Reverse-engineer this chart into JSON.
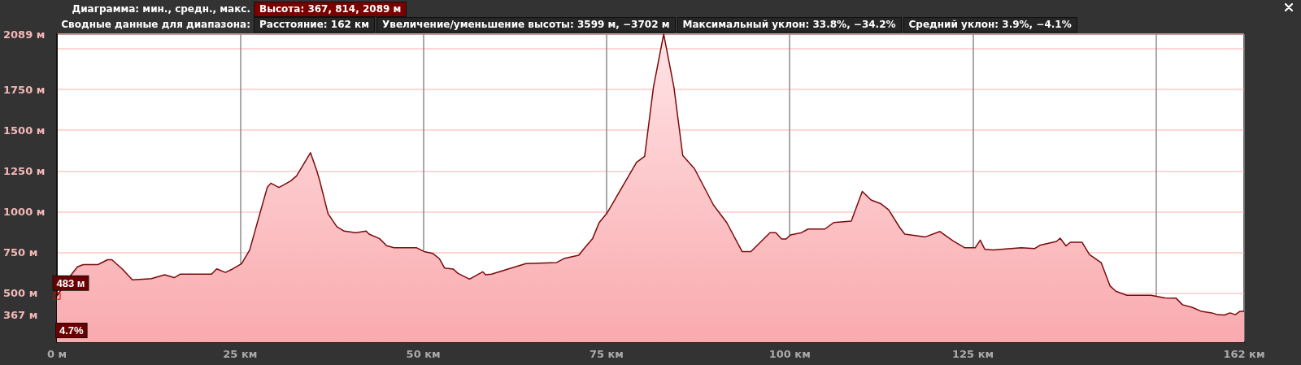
{
  "chart_data": {
    "type": "area",
    "title": "Диаграмма: мин., средн., макс.",
    "subtitle": "Сводные данные для диапазона:",
    "annotations": [
      "Высота: 367, 814, 2089 м",
      "Расстояние: 162 км",
      "Увеличение/уменьшение высоты: 3599 м, −3702 м",
      "Максимальный уклон: 33.8%, −34.2%",
      "Средний уклон: 3.9%, −4.1%",
      {
        "text": "483 м",
        "x": 0,
        "y": 483
      },
      {
        "text": "4.7%",
        "x": 0
      }
    ],
    "series": [
      {
        "color": "#7a0a0a",
        "x": [
          0,
          1.8,
          2.8,
          3.6,
          5.6,
          6.9,
          7.5,
          8.9,
          10.3,
          12.1,
          12.9,
          14.7,
          16.0,
          16.8,
          19.6,
          21.1,
          21.8,
          23.0,
          24.0,
          25.2,
          26.3,
          27.3,
          28.7,
          29.2,
          30.3,
          31.9,
          32.7,
          34.6,
          35.5,
          35.9,
          37.0,
          38.2,
          39.2,
          40.8,
          42.2,
          42.6,
          44.0,
          45.0,
          46.0,
          49.1,
          50.1,
          51.3,
          52.2,
          52.9,
          54.1,
          54.7,
          56.3,
          58.1,
          58.5,
          59.3,
          62.0,
          64.0,
          68.2,
          69.3,
          71.2,
          72.1,
          73.1,
          74.0,
          75.1,
          77.1,
          79.1,
          80.2,
          81.4,
          82.8,
          84.2,
          85.4,
          87.0,
          89.6,
          91.4,
          93.5,
          94.7,
          97.3,
          98.1,
          98.9,
          99.5,
          100.1,
          101.6,
          102.5,
          104.8,
          106.0,
          108.4,
          109.9,
          111.1,
          112.4,
          113.5,
          115.0,
          115.7,
          118.5,
          120.5,
          122.3,
          123.9,
          125.3,
          126.0,
          126.6,
          127.7,
          131.6,
          133.4,
          134.2,
          136.4,
          136.9,
          137.7,
          138.3,
          139.9,
          140.9,
          142.5,
          143.7,
          144.5,
          146.0,
          149.3,
          151.2,
          152.7,
          153.6,
          154.9,
          156.2,
          157.6,
          158.4,
          159.3,
          160.1,
          160.8,
          161.4,
          162
        ],
        "values": [
          483,
          605,
          662,
          676,
          676,
          706,
          706,
          650,
          582,
          588,
          590,
          614,
          596,
          617,
          617,
          617,
          650,
          628,
          650,
          682,
          765,
          926,
          1149,
          1175,
          1149,
          1189,
          1220,
          1362,
          1247,
          1184,
          988,
          908,
          881,
          872,
          881,
          863,
          836,
          792,
          779,
          779,
          756,
          744,
          712,
          655,
          649,
          623,
          587,
          632,
          614,
          617,
          655,
          682,
          689,
          715,
          733,
          783,
          836,
          934,
          994,
          1149,
          1303,
          1339,
          1763,
          2089,
          1763,
          1345,
          1264,
          1041,
          934,
          756,
          756,
          872,
          872,
          833,
          833,
          858,
          872,
          894,
          894,
          934,
          943,
          1125,
          1072,
          1050,
          1012,
          904,
          863,
          846,
          879,
          821,
          779,
          779,
          826,
          771,
          766,
          779,
          774,
          796,
          818,
          838,
          791,
          813,
          813,
          738,
          688,
          546,
          513,
          488,
          488,
          472,
          471,
          430,
          414,
          389,
          380,
          369,
          367,
          380,
          369,
          389,
          389
        ]
      }
    ],
    "xlim": [
      0,
      162
    ],
    "xticks": [
      {
        "value": 0,
        "label": "0 м"
      },
      {
        "value": 25,
        "label": "25 км"
      },
      {
        "value": 50,
        "label": "50 км"
      },
      {
        "value": 75,
        "label": "75 км"
      },
      {
        "value": 100,
        "label": "100 км"
      },
      {
        "value": 125,
        "label": "125 км"
      },
      {
        "value": 150,
        "label": null
      },
      {
        "value": 162,
        "label": "162 км"
      }
    ],
    "ylim": [
      200,
      2089
    ],
    "yticks": [
      {
        "value": 367,
        "label": "367 м"
      },
      {
        "value": 500,
        "label": "500 м"
      },
      {
        "value": 750,
        "label": "750 м"
      },
      {
        "value": 1000,
        "label": "1000 м"
      },
      {
        "value": 1250,
        "label": "1250 м"
      },
      {
        "value": 1500,
        "label": "1500 м"
      },
      {
        "value": 1750,
        "label": "1750 м"
      },
      {
        "value": 2000,
        "label": null
      },
      {
        "value": 2089,
        "label": "2089 м"
      }
    ],
    "grid": true,
    "marker": "none",
    "line_style": "solid"
  }
}
